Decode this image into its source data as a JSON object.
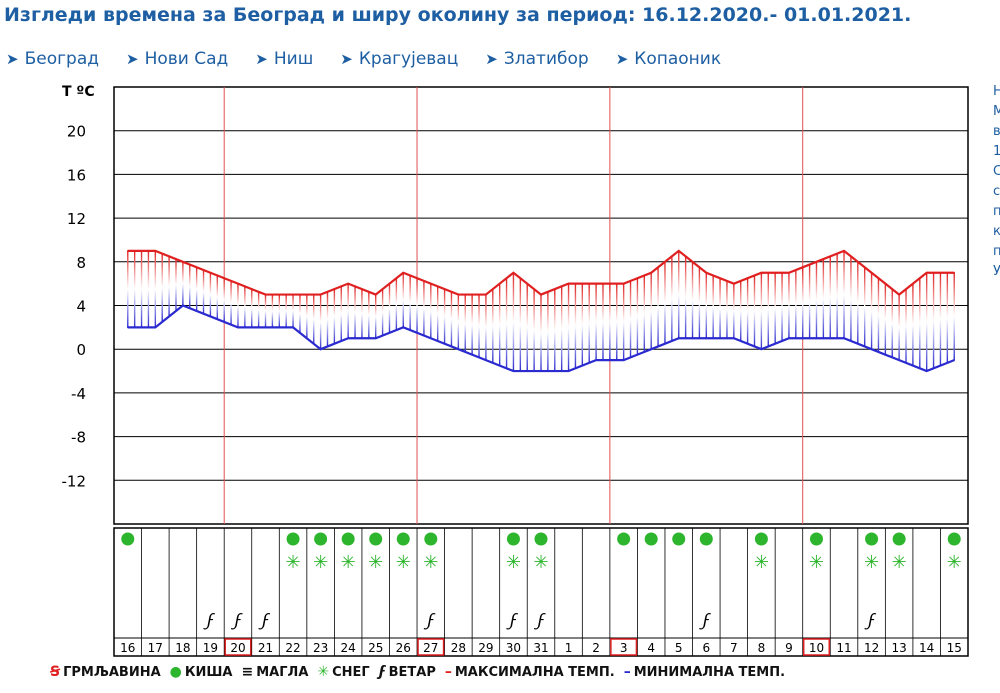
{
  "page": {
    "title": "Изгледи времена за Београд и ширу околину за период: 16.12.2020.- 01.01.2021."
  },
  "nav": {
    "items": [
      {
        "label": "Београд"
      },
      {
        "label": "Нови Сад"
      },
      {
        "label": "Ниш"
      },
      {
        "label": "Крагујевац"
      },
      {
        "label": "Златибор"
      },
      {
        "label": "Копаоник"
      }
    ]
  },
  "side_text": [
    "Н",
    "",
    "",
    "М",
    "в",
    "1",
    "С",
    "с",
    "п",
    "к",
    "п",
    "У"
  ],
  "legend": [
    {
      "symbol": "thunder-icon",
      "label": "ГРМЉАВИНА",
      "color": "#e02020"
    },
    {
      "symbol": "rain-icon",
      "label": "КИША",
      "color": "#2db52d"
    },
    {
      "symbol": "fog-icon",
      "label": "МАГЛА",
      "color": "#111111"
    },
    {
      "symbol": "snow-icon",
      "label": "СНЕГ",
      "color": "#2db52d"
    },
    {
      "symbol": "wind-icon",
      "label": "ВЕТАР",
      "color": "#111111"
    },
    {
      "symbol": "max-line-icon",
      "label": "МАКСИМАЛНА ТЕМП.",
      "color": "#e02020"
    },
    {
      "symbol": "min-line-icon",
      "label": "МИНИМАЛНА ТЕМП.",
      "color": "#2a2ad0"
    }
  ],
  "chart_data": {
    "type": "area",
    "ylabel": "T ºC",
    "yticks": [
      20,
      16,
      12,
      8,
      4,
      0,
      -4,
      -8,
      -12
    ],
    "ylim": [
      -16,
      24
    ],
    "x": [
      "16",
      "17",
      "18",
      "19",
      "20",
      "21",
      "22",
      "23",
      "24",
      "25",
      "26",
      "27",
      "28",
      "29",
      "30",
      "31",
      "1",
      "2",
      "3",
      "4",
      "5",
      "6",
      "7",
      "8",
      "9",
      "10",
      "11",
      "12",
      "13",
      "14",
      "15"
    ],
    "highlighted_days": [
      "20",
      "27",
      "3",
      "10"
    ],
    "series": [
      {
        "name": "МАКСИМАЛНА ТЕМП.",
        "color": "#e02020",
        "values": [
          9,
          9,
          8,
          7,
          6,
          5,
          5,
          5,
          6,
          5,
          7,
          6,
          5,
          5,
          7,
          5,
          6,
          6,
          6,
          7,
          9,
          7,
          6,
          7,
          7,
          8,
          9,
          7,
          5,
          7,
          7
        ]
      },
      {
        "name": "МИНИМАЛНА ТЕМП.",
        "color": "#2a2ad0",
        "values": [
          2,
          2,
          4,
          3,
          2,
          2,
          2,
          0,
          1,
          1,
          2,
          1,
          0,
          -1,
          -2,
          -2,
          -2,
          -1,
          -1,
          0,
          1,
          1,
          1,
          0,
          1,
          1,
          1,
          0,
          -1,
          -2,
          -1
        ]
      }
    ],
    "rain": [
      1,
      0,
      0,
      0,
      0,
      0,
      1,
      1,
      1,
      1,
      1,
      1,
      0,
      0,
      1,
      1,
      0,
      0,
      1,
      1,
      1,
      1,
      0,
      1,
      0,
      1,
      0,
      1,
      1,
      0,
      1
    ],
    "snow": [
      0,
      0,
      0,
      0,
      0,
      0,
      1,
      1,
      1,
      1,
      1,
      1,
      0,
      0,
      1,
      1,
      0,
      0,
      0,
      0,
      0,
      0,
      0,
      1,
      0,
      1,
      0,
      1,
      1,
      0,
      1
    ],
    "wind": [
      0,
      0,
      0,
      1,
      1,
      1,
      0,
      0,
      0,
      0,
      0,
      1,
      0,
      0,
      1,
      1,
      0,
      0,
      0,
      0,
      0,
      1,
      0,
      0,
      0,
      0,
      0,
      1,
      0,
      0,
      0
    ]
  }
}
